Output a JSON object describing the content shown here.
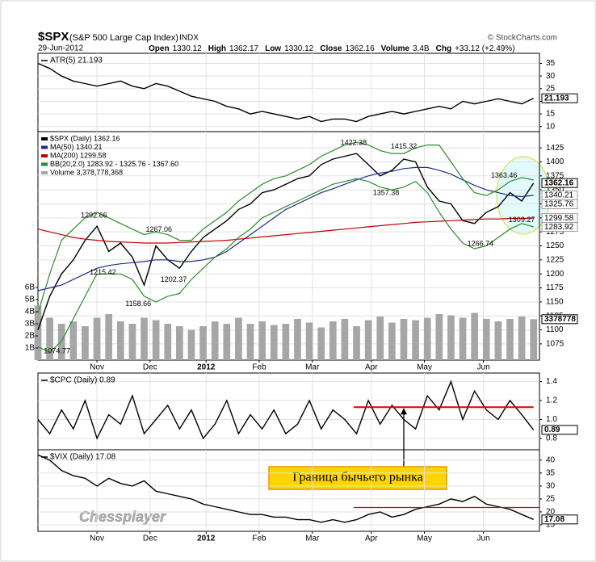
{
  "header": {
    "symbol": "$SPX",
    "name": "(S&P 500 Large Cap Index)",
    "exchange": "INDX",
    "source": "© StockCharts.com",
    "date": "29-Jun-2012",
    "quote": [
      {
        "label": "Open",
        "value": "1330.12"
      },
      {
        "label": "High",
        "value": "1362.17"
      },
      {
        "label": "Low",
        "value": "1330.12"
      },
      {
        "label": "Close",
        "value": "1362.16"
      },
      {
        "label": "Volume",
        "value": "3.4B"
      },
      {
        "label": "Chg",
        "value": "+33.12 (+2.49%)"
      }
    ]
  },
  "watermark": "Chessplayer",
  "chart_data": [
    {
      "type": "line",
      "legend": "ATR(5) 21.193",
      "x": [
        0,
        4,
        8,
        12,
        16,
        20,
        24,
        28,
        32,
        36,
        40,
        44,
        48,
        52,
        56,
        60,
        64,
        68,
        72,
        76,
        80,
        84,
        88,
        92,
        96,
        100,
        104,
        108,
        112,
        116,
        120,
        124,
        128,
        132,
        136,
        140,
        144,
        148,
        152,
        156,
        160,
        164,
        168
      ],
      "xlim": [
        0,
        170
      ],
      "ylim": [
        8,
        39
      ],
      "yticks": [
        10,
        15,
        20,
        25,
        30,
        35
      ],
      "series": [
        {
          "color": "#000000",
          "values": [
            35,
            33,
            30,
            28,
            27,
            26,
            27,
            28,
            26,
            25,
            27,
            26,
            24,
            22,
            21,
            20,
            18,
            17,
            15,
            16,
            15,
            14,
            13,
            14,
            12,
            13,
            13,
            12,
            14,
            15,
            16,
            15,
            16,
            17,
            18,
            17,
            20,
            19,
            20,
            21,
            20,
            19,
            21.193
          ]
        }
      ],
      "end_tags": [
        21.193
      ]
    },
    {
      "type": "line",
      "x": [
        0,
        4,
        8,
        12,
        16,
        20,
        24,
        28,
        32,
        36,
        40,
        44,
        48,
        52,
        56,
        60,
        64,
        68,
        72,
        76,
        80,
        84,
        88,
        92,
        96,
        100,
        104,
        108,
        112,
        116,
        120,
        124,
        128,
        132,
        136,
        140,
        144,
        148,
        152,
        156,
        160,
        164,
        168
      ],
      "xlim": [
        0,
        170
      ],
      "ylim": [
        1046,
        1454
      ],
      "yticks": [
        1075,
        1100,
        1125,
        1150,
        1175,
        1200,
        1225,
        1250,
        1275,
        1300,
        1325,
        1350,
        1375,
        1400,
        1425
      ],
      "xticks": [
        {
          "value": 20,
          "label": "Nov"
        },
        {
          "value": 38,
          "label": "Dec"
        },
        {
          "value": 57,
          "label": "2012"
        },
        {
          "value": 75,
          "label": "Feb"
        },
        {
          "value": 93,
          "label": "Mar"
        },
        {
          "value": 113,
          "label": "Apr"
        },
        {
          "value": 131,
          "label": "May"
        },
        {
          "value": 151,
          "label": "Jun"
        }
      ],
      "series": [
        {
          "name": "$SPX (Daily) 1362.16",
          "color": "#000000",
          "values": [
            1100,
            1160,
            1200,
            1225,
            1260,
            1285,
            1240,
            1255,
            1230,
            1180,
            1250,
            1225,
            1210,
            1240,
            1265,
            1280,
            1295,
            1315,
            1325,
            1345,
            1350,
            1360,
            1370,
            1375,
            1395,
            1405,
            1410,
            1415,
            1395,
            1375,
            1385,
            1405,
            1400,
            1355,
            1330,
            1325,
            1295,
            1290,
            1310,
            1320,
            1345,
            1330,
            1362.16
          ]
        },
        {
          "name": "MA(50) 1340.21",
          "color": "#1f2d8c",
          "values": [
            1170,
            1175,
            1180,
            1190,
            1200,
            1210,
            1215,
            1218,
            1220,
            1222,
            1225,
            1225,
            1222,
            1222,
            1225,
            1230,
            1240,
            1255,
            1270,
            1285,
            1300,
            1315,
            1325,
            1335,
            1345,
            1352,
            1360,
            1368,
            1375,
            1380,
            1383,
            1388,
            1390,
            1390,
            1385,
            1378,
            1368,
            1358,
            1350,
            1345,
            1340,
            1338,
            1340.21
          ]
        },
        {
          "name": "MA(200) 1299.58",
          "color": "#c00000",
          "values": [
            1280,
            1275,
            1270,
            1265,
            1262,
            1260,
            1258,
            1257,
            1256,
            1255,
            1255,
            1255,
            1256,
            1257,
            1258,
            1259,
            1260,
            1262,
            1264,
            1266,
            1268,
            1270,
            1272,
            1274,
            1276,
            1278,
            1280,
            1282,
            1284,
            1286,
            1288,
            1290,
            1292,
            1293,
            1294,
            1295,
            1296,
            1297,
            1298,
            1298,
            1299,
            1299,
            1299.58
          ]
        },
        {
          "name": "BB(20,2.0) 1283.92 - 1325.76 - 1367.60",
          "color": "#2e8b2e",
          "values": [
            1130,
            1200,
            1260,
            1280,
            1300,
            1310,
            1300,
            1290,
            1280,
            1270,
            1275,
            1270,
            1260,
            1260,
            1280,
            1295,
            1310,
            1330,
            1345,
            1360,
            1370,
            1375,
            1385,
            1395,
            1410,
            1420,
            1430,
            1435,
            1430,
            1420,
            1415,
            1415,
            1425,
            1430,
            1430,
            1400,
            1370,
            1345,
            1340,
            1350,
            1365,
            1372,
            1367.6
          ],
          "lower": [
            1070,
            1060,
            1080,
            1120,
            1160,
            1200,
            1200,
            1200,
            1190,
            1160,
            1150,
            1160,
            1165,
            1190,
            1210,
            1230,
            1245,
            1265,
            1280,
            1300,
            1310,
            1320,
            1330,
            1340,
            1350,
            1360,
            1365,
            1370,
            1365,
            1355,
            1350,
            1355,
            1365,
            1345,
            1310,
            1280,
            1255,
            1245,
            1250,
            1265,
            1280,
            1290,
            1283.92
          ]
        }
      ],
      "volume": {
        "name": "Volume 3,378,778,368",
        "color": "#a6a6a6",
        "values": [
          4.5,
          3.5,
          3,
          3.2,
          2.8,
          3.5,
          3.8,
          3.2,
          3,
          3.5,
          3.3,
          3,
          2.8,
          2.5,
          2.8,
          3.2,
          3,
          3.5,
          3,
          3.2,
          2.9,
          3,
          3.4,
          3.1,
          2.7,
          3.2,
          3.4,
          2.8,
          3.3,
          3.6,
          3.1,
          3.4,
          3.3,
          3.5,
          3.8,
          3.7,
          3.5,
          3.9,
          3.4,
          3.2,
          3.4,
          3.6,
          3.378778368
        ],
        "lim": [
          0,
          7.4
        ],
        "ticks": [
          {
            "value": 1,
            "label": "1B"
          },
          {
            "value": 2,
            "label": "2B"
          },
          {
            "value": 3,
            "label": "3B"
          },
          {
            "value": 4,
            "label": "4B"
          },
          {
            "value": 5,
            "label": "5B"
          },
          {
            "value": 6,
            "label": "6B"
          }
        ],
        "end_tag": 3378778
      },
      "annotations": [
        {
          "x": 19,
          "y": 1292.66,
          "position": "above"
        },
        {
          "x": 22,
          "y": 1215.42,
          "position": "below"
        },
        {
          "x": 34,
          "y": 1158.66,
          "position": "below"
        },
        {
          "x": 41,
          "y": 1267.06,
          "position": "above"
        },
        {
          "x": 46,
          "y": 1202.37,
          "position": "below"
        },
        {
          "x": 107,
          "y": 1422.38,
          "position": "above"
        },
        {
          "x": 118,
          "y": 1357.38,
          "position": "below"
        },
        {
          "x": 124,
          "y": 1415.32,
          "position": "above"
        },
        {
          "x": 150,
          "y": 1266.74,
          "position": "below"
        },
        {
          "x": 158,
          "y": 1363.46,
          "position": "above"
        },
        {
          "x": 164,
          "y": 1309.27,
          "position": "below"
        },
        {
          "x": 2,
          "y": 1074.77,
          "position": "below"
        }
      ],
      "end_tags": [
        1362.16,
        1340.21,
        1325.76,
        1299.58,
        1283.92
      ]
    },
    {
      "type": "line",
      "legend": "$CPC (Daily) 0.89",
      "x": [
        0,
        4,
        8,
        12,
        16,
        20,
        24,
        28,
        32,
        36,
        40,
        44,
        48,
        52,
        56,
        60,
        64,
        68,
        72,
        76,
        80,
        84,
        88,
        92,
        96,
        100,
        104,
        108,
        112,
        116,
        120,
        124,
        128,
        132,
        136,
        140,
        144,
        148,
        152,
        156,
        160,
        164,
        168
      ],
      "xlim": [
        0,
        170
      ],
      "ylim": [
        0.68,
        1.49
      ],
      "yticks": [
        0.8,
        {
          "value": 1,
          "label": "1.0"
        },
        1.2,
        1.4
      ],
      "series": [
        {
          "color": "#000000",
          "values": [
            1.0,
            0.85,
            1.1,
            0.9,
            1.2,
            0.8,
            1.05,
            0.95,
            1.25,
            0.85,
            1.0,
            1.15,
            0.9,
            1.1,
            0.8,
            0.95,
            1.2,
            0.85,
            1.05,
            0.9,
            1.1,
            0.85,
            0.95,
            1.2,
            0.9,
            1.1,
            1.0,
            0.85,
            1.2,
            0.95,
            1.15,
            1.0,
            0.9,
            1.25,
            1.1,
            1.4,
            1.0,
            1.3,
            1.1,
            1.0,
            1.2,
            1.05,
            0.89
          ]
        }
      ],
      "reference_line": {
        "y": 1.13,
        "x": [
          107,
          168
        ],
        "color": "#e00000"
      },
      "callout": "Граница бычьего рынка",
      "end_tags": [
        0.89
      ]
    },
    {
      "type": "line",
      "legend": "$VIX (Daily) 17.08",
      "x": [
        0,
        4,
        8,
        12,
        16,
        20,
        24,
        28,
        32,
        36,
        40,
        44,
        48,
        52,
        56,
        60,
        64,
        68,
        72,
        76,
        80,
        84,
        88,
        92,
        96,
        100,
        104,
        108,
        112,
        116,
        120,
        124,
        128,
        132,
        136,
        140,
        144,
        148,
        152,
        156,
        160,
        164,
        168
      ],
      "xlim": [
        0,
        170
      ],
      "ylim": [
        12.5,
        44
      ],
      "yticks": [
        15,
        20,
        25,
        30,
        35,
        40
      ],
      "xticks": [
        {
          "value": 20,
          "label": "Nov"
        },
        {
          "value": 38,
          "label": "Dec"
        },
        {
          "value": 57,
          "label": "2012"
        },
        {
          "value": 75,
          "label": "Feb"
        },
        {
          "value": 93,
          "label": "Mar"
        },
        {
          "value": 113,
          "label": "Apr"
        },
        {
          "value": 131,
          "label": "May"
        },
        {
          "value": 151,
          "label": "Jun"
        }
      ],
      "series": [
        {
          "color": "#000000",
          "values": [
            42,
            40,
            36,
            34,
            33,
            30,
            33,
            31,
            30,
            32,
            28,
            27,
            26,
            25,
            23,
            22,
            21,
            20,
            19,
            19,
            18,
            18,
            17,
            17,
            16,
            17,
            16,
            17,
            19,
            20,
            18,
            19,
            21,
            22,
            23,
            25,
            24,
            26,
            23,
            22,
            21,
            19,
            17.08
          ]
        }
      ],
      "reference_line": {
        "y": 21.7,
        "x": [
          107,
          170
        ],
        "color": "#e00000"
      },
      "end_tags": [
        17.08
      ]
    }
  ]
}
